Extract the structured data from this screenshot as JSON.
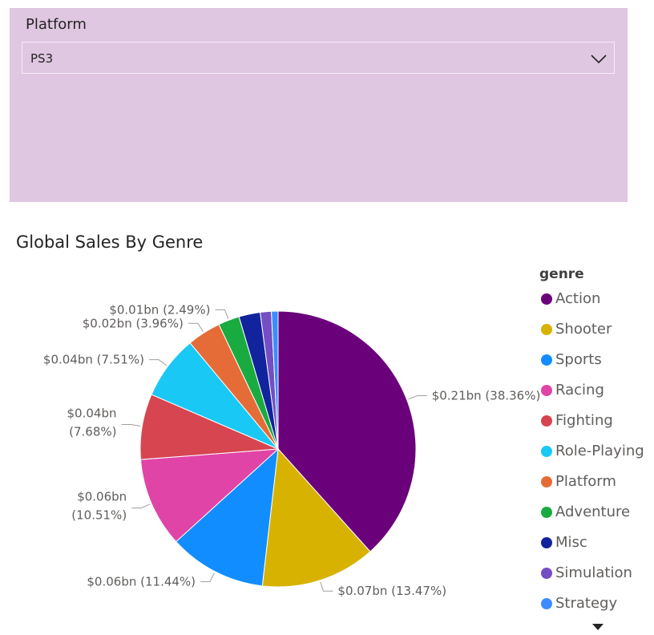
{
  "slicer": {
    "title": "Platform",
    "selected": "PS3"
  },
  "chart_data": {
    "type": "pie",
    "title": "Global Sales By Genre",
    "legend_title": "genre",
    "legend_position": "right",
    "slices": [
      {
        "name": "Action",
        "value": 0.21,
        "percent": 38.36,
        "color": "#6b007b",
        "label": [
          "$0.21bn (38.36%)"
        ]
      },
      {
        "name": "Shooter",
        "value": 0.07,
        "percent": 13.47,
        "color": "#d8b200",
        "label": [
          "$0.07bn (13.47%)"
        ]
      },
      {
        "name": "Sports",
        "value": 0.06,
        "percent": 11.44,
        "color": "#118dff",
        "label": [
          "$0.06bn (11.44%)"
        ]
      },
      {
        "name": "Racing",
        "value": 0.06,
        "percent": 10.51,
        "color": "#e044a7",
        "label": [
          "$0.06bn",
          "(10.51%)"
        ]
      },
      {
        "name": "Fighting",
        "value": 0.04,
        "percent": 7.68,
        "color": "#d64550",
        "label": [
          "$0.04bn",
          "(7.68%)"
        ]
      },
      {
        "name": "Role-Playing",
        "value": 0.04,
        "percent": 7.51,
        "color": "#1ac8f5",
        "label": [
          "$0.04bn (7.51%)"
        ]
      },
      {
        "name": "Platform",
        "value": 0.02,
        "percent": 3.96,
        "color": "#e66c37",
        "label": [
          "$0.02bn (3.96%)"
        ]
      },
      {
        "name": "Adventure",
        "value": 0.01,
        "percent": 2.49,
        "color": "#1aab40",
        "label": [
          "$0.01bn (2.49%)"
        ]
      },
      {
        "name": "Misc",
        "value": null,
        "percent": 2.5,
        "color": "#12239e",
        "label": []
      },
      {
        "name": "Simulation",
        "value": null,
        "percent": 1.3,
        "color": "#744ec2",
        "label": []
      },
      {
        "name": "Strategy",
        "value": null,
        "percent": 0.78,
        "color": "#3c8cff",
        "label": []
      }
    ]
  }
}
